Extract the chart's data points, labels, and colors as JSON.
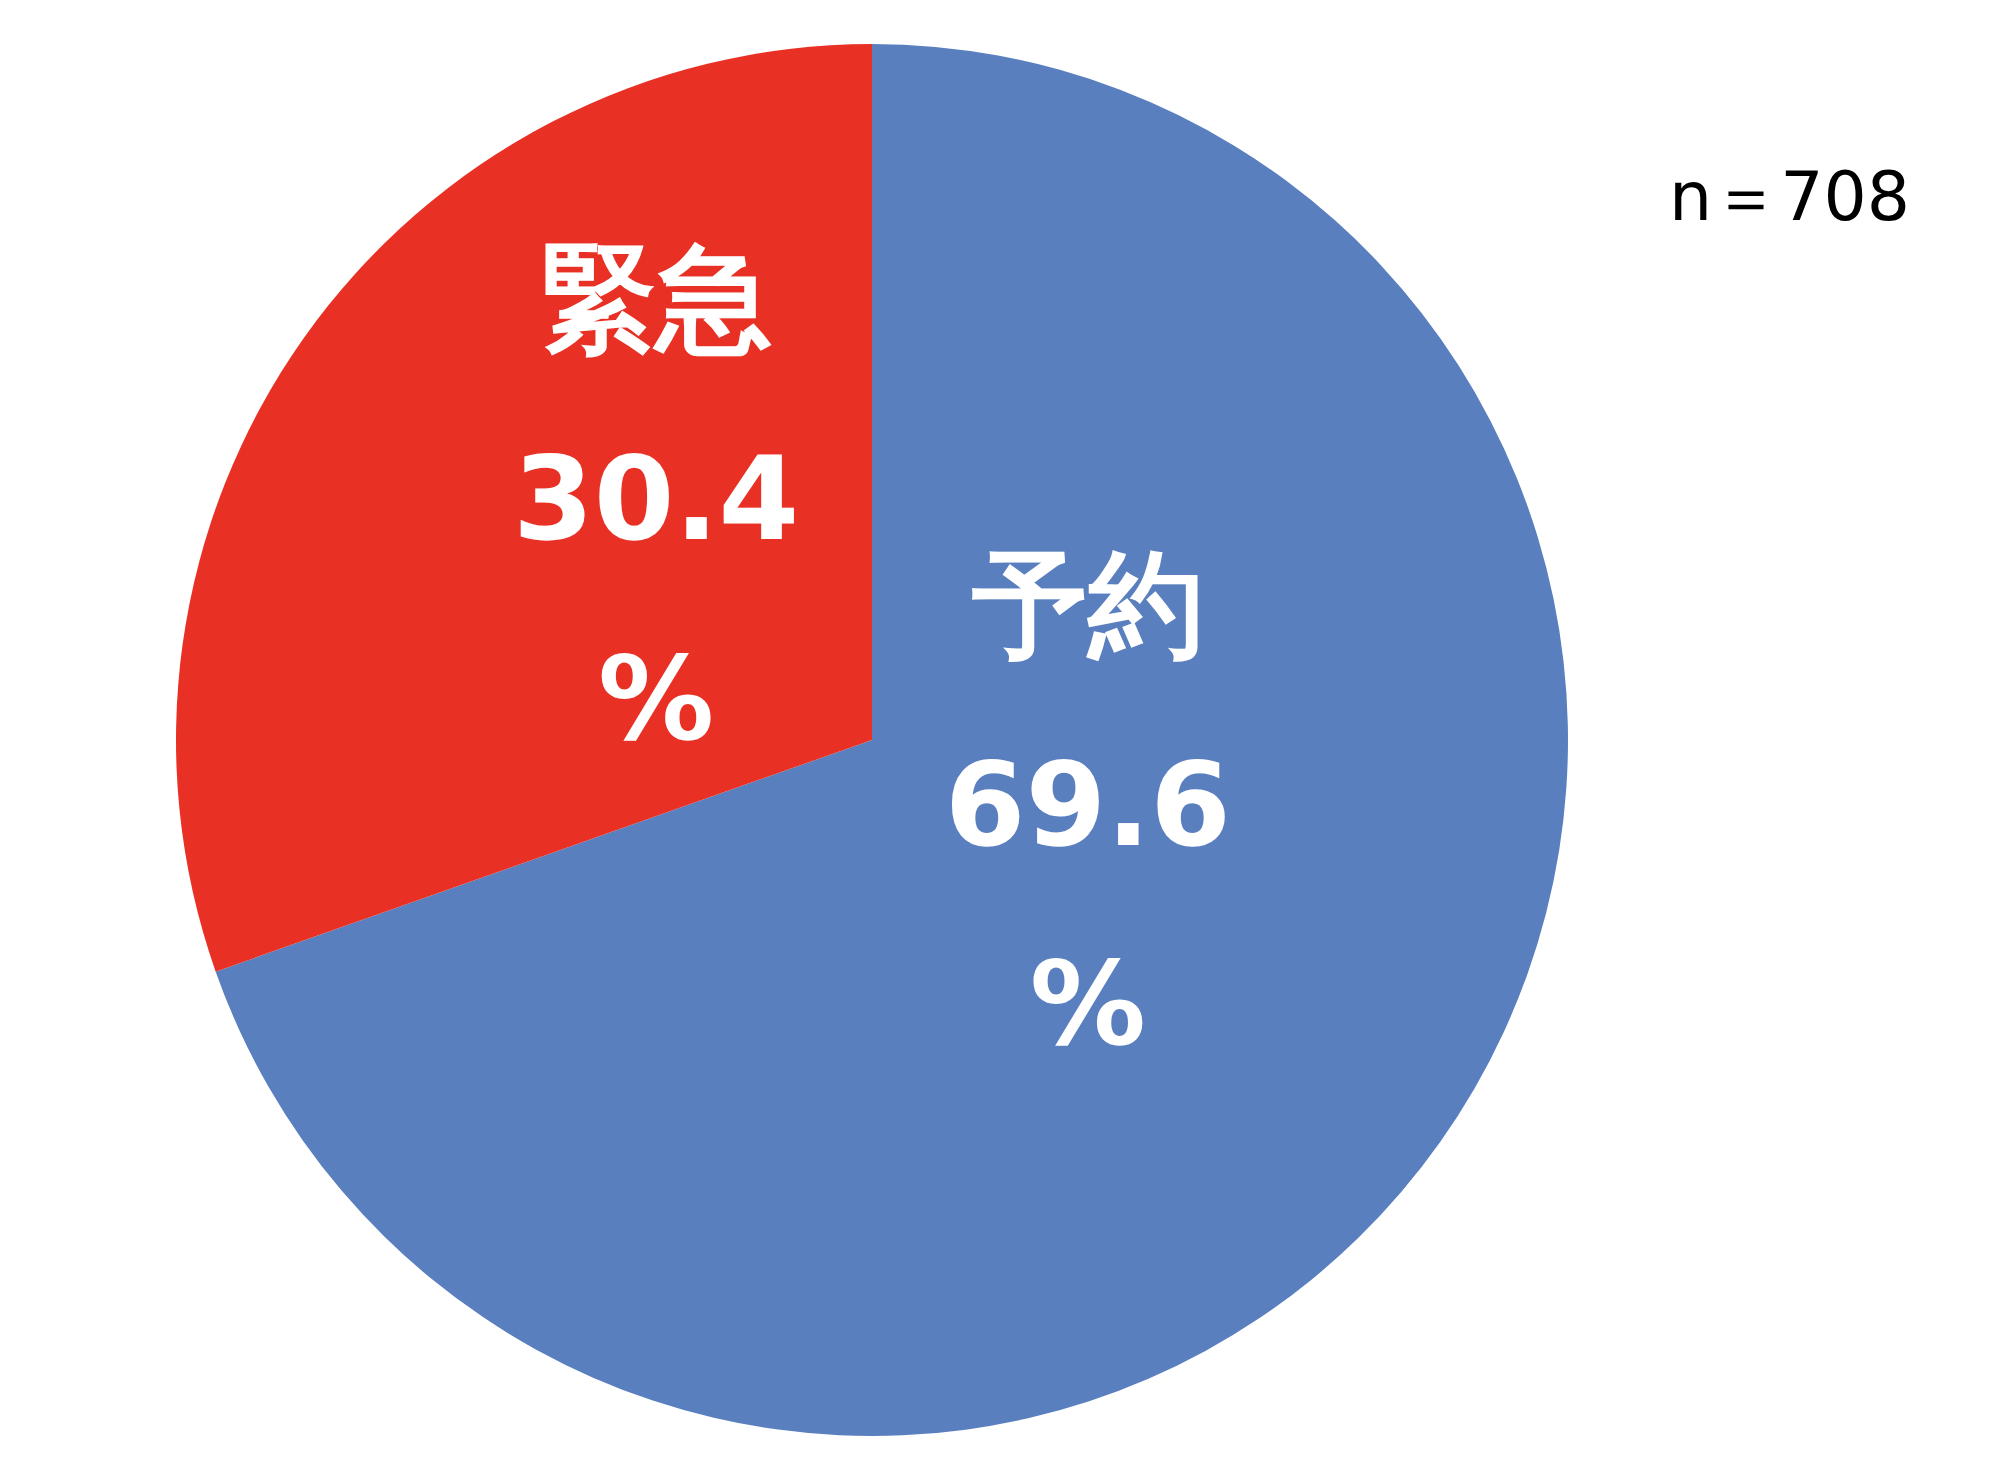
{
  "chart_data": {
    "type": "pie",
    "categories": [
      "予約",
      "緊急"
    ],
    "values": [
      69.6,
      30.4
    ],
    "colors": [
      "#5a7fbf",
      "#e93024"
    ],
    "value_labels": [
      "69.6%",
      "30.4%"
    ],
    "annotations": [
      "n＝708"
    ]
  }
}
